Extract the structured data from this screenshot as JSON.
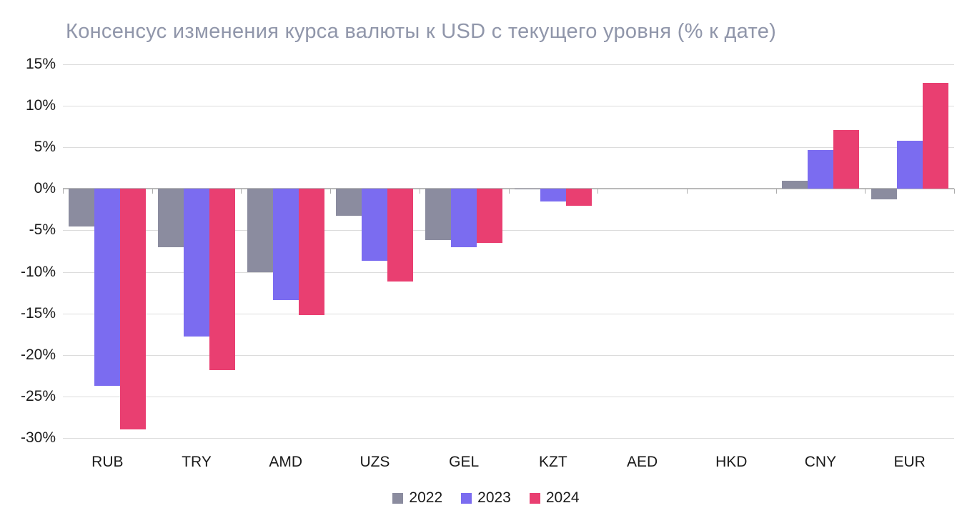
{
  "chart_data": {
    "type": "bar",
    "title": "Консенсус изменения курса валюты к USD с текущего уровня (% к дате)",
    "title_color": "#9096AA",
    "categories": [
      "RUB",
      "TRY",
      "AMD",
      "UZS",
      "GEL",
      "KZT",
      "AED",
      "HKD",
      "CNY",
      "EUR"
    ],
    "series": [
      {
        "name": "2022",
        "color": "#8B8C9F",
        "values": [
          -4.5,
          -7.0,
          -10.0,
          -3.2,
          -6.2,
          -0.1,
          0,
          0,
          1.0,
          -1.3
        ]
      },
      {
        "name": "2023",
        "color": "#7B6CF0",
        "values": [
          -23.7,
          -17.8,
          -13.4,
          -8.7,
          -7.0,
          -1.5,
          0,
          0,
          4.7,
          5.8
        ]
      },
      {
        "name": "2024",
        "color": "#E93F71",
        "values": [
          -29.0,
          -21.8,
          -15.2,
          -11.2,
          -6.5,
          -2.0,
          0,
          0,
          7.1,
          12.8
        ]
      }
    ],
    "ylim": [
      -30,
      15
    ],
    "yticks": [
      {
        "value": 15,
        "label": "15%"
      },
      {
        "value": 10,
        "label": "10%"
      },
      {
        "value": 5,
        "label": "5%"
      },
      {
        "value": 0,
        "label": "0%"
      },
      {
        "value": -5,
        "label": "-5%"
      },
      {
        "value": -10,
        "label": "-10%"
      },
      {
        "value": -15,
        "label": "-15%"
      },
      {
        "value": -20,
        "label": "-20%"
      },
      {
        "value": -25,
        "label": "-25%"
      },
      {
        "value": -30,
        "label": "-30%"
      }
    ],
    "grid": true,
    "grid_color": "#DCDCDC",
    "axis_color": "#BABABA",
    "tick_color": "#ADADAD",
    "legend_position": "bottom"
  }
}
